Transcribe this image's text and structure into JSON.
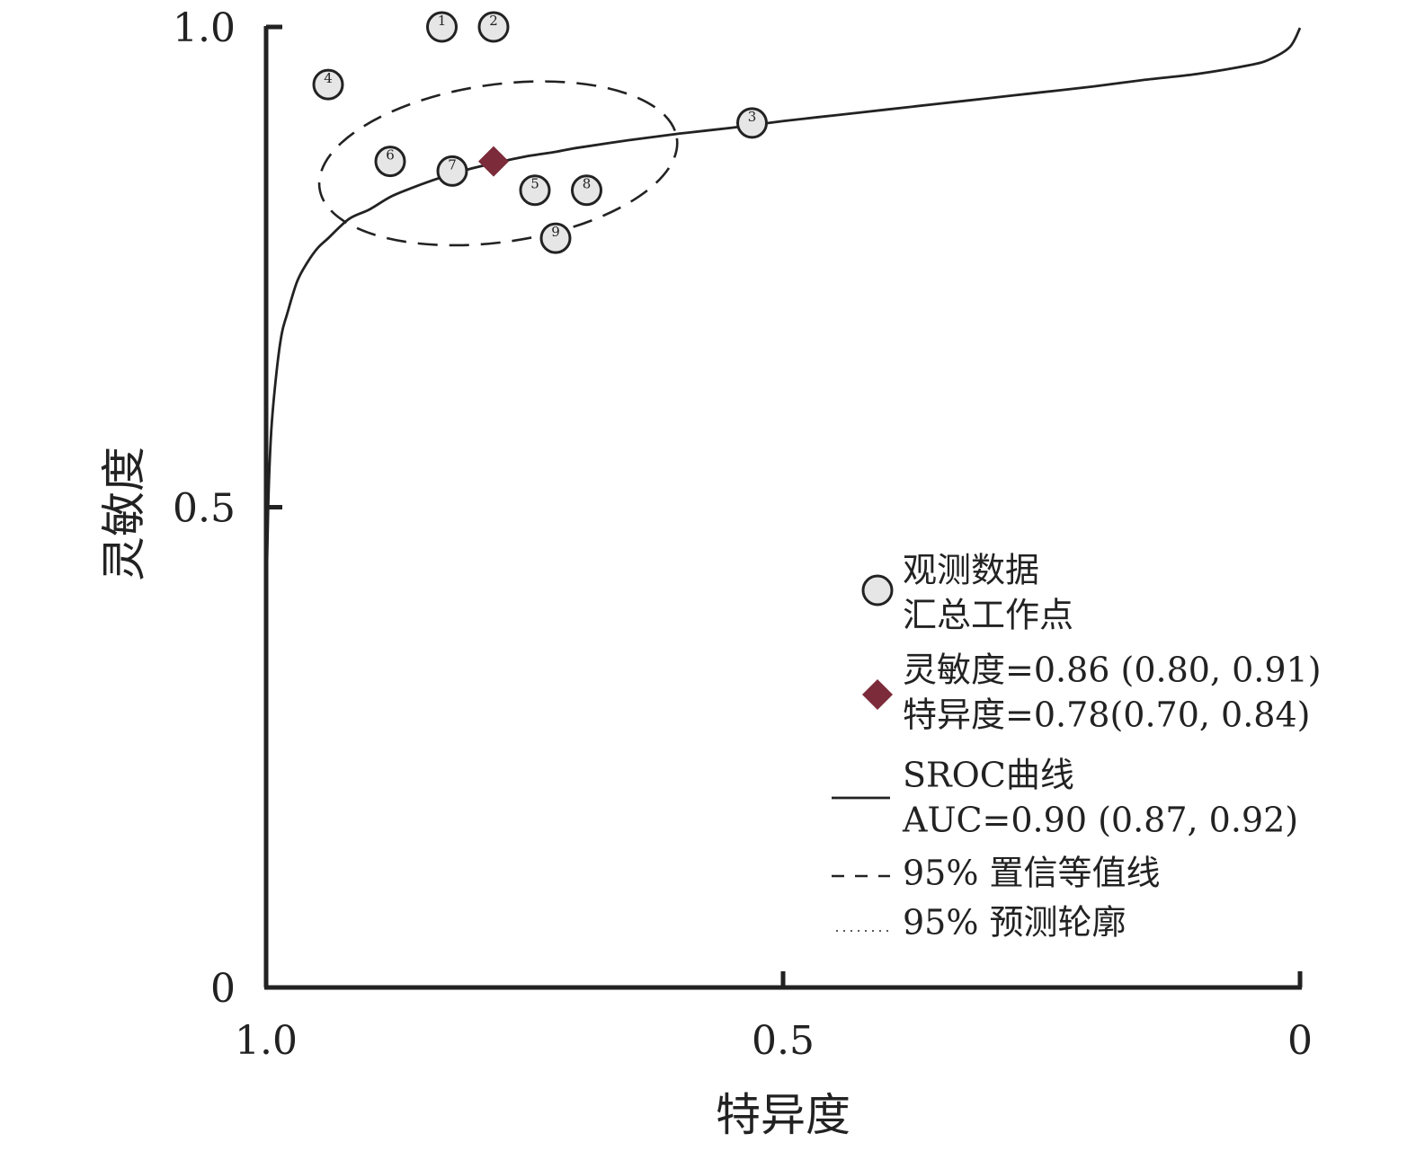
{
  "chart_data": {
    "type": "scatter",
    "title": "",
    "xlabel": "特异度",
    "ylabel": "灵敏度",
    "x_reversed": true,
    "xlim": [
      1.0,
      0
    ],
    "ylim": [
      0,
      1.0
    ],
    "x_ticks": [
      {
        "value": 1.0,
        "label": "1.0"
      },
      {
        "value": 0.5,
        "label": "0.5"
      },
      {
        "value": 0,
        "label": "0"
      }
    ],
    "y_ticks": [
      {
        "value": 0,
        "label": "0"
      },
      {
        "value": 0.5,
        "label": "0.5"
      },
      {
        "value": 1.0,
        "label": "1.0"
      }
    ],
    "grid": false,
    "legend_position": "bottom-right",
    "observed": [
      {
        "label": "1",
        "specificity": 0.83,
        "sensitivity": 1.0
      },
      {
        "label": "2",
        "specificity": 0.78,
        "sensitivity": 1.0
      },
      {
        "label": "3",
        "specificity": 0.53,
        "sensitivity": 0.9
      },
      {
        "label": "4",
        "specificity": 0.94,
        "sensitivity": 0.94
      },
      {
        "label": "5",
        "specificity": 0.74,
        "sensitivity": 0.83
      },
      {
        "label": "6",
        "specificity": 0.88,
        "sensitivity": 0.86
      },
      {
        "label": "7",
        "specificity": 0.82,
        "sensitivity": 0.85
      },
      {
        "label": "8",
        "specificity": 0.69,
        "sensitivity": 0.83
      },
      {
        "label": "9",
        "specificity": 0.72,
        "sensitivity": 0.78
      }
    ],
    "summary_point": {
      "specificity": 0.78,
      "sensitivity": 0.86
    },
    "sroc_curve": {
      "x": [
        1.0,
        0.998,
        0.995,
        0.99,
        0.985,
        0.98,
        0.97,
        0.96,
        0.95,
        0.94,
        0.92,
        0.9,
        0.88,
        0.86,
        0.84,
        0.82,
        0.8,
        0.78,
        0.75,
        0.72,
        0.7,
        0.65,
        0.6,
        0.55,
        0.5,
        0.45,
        0.4,
        0.35,
        0.3,
        0.25,
        0.2,
        0.15,
        0.1,
        0.05,
        0.03,
        0.01,
        0.0
      ],
      "y": [
        0.38,
        0.5,
        0.58,
        0.64,
        0.68,
        0.7,
        0.735,
        0.755,
        0.77,
        0.78,
        0.8,
        0.81,
        0.823,
        0.832,
        0.84,
        0.847,
        0.853,
        0.858,
        0.865,
        0.87,
        0.874,
        0.882,
        0.889,
        0.895,
        0.902,
        0.908,
        0.914,
        0.92,
        0.926,
        0.932,
        0.938,
        0.945,
        0.951,
        0.96,
        0.966,
        0.979,
        0.999
      ]
    },
    "confidence_region": {
      "cx": 0.7755,
      "cy": 0.858,
      "rx": 0.1745,
      "ry": 0.082,
      "rotation_deg": -8
    },
    "legend": [
      {
        "symbol": "circle",
        "lines": [
          "观测数据",
          "汇总工作点"
        ]
      },
      {
        "symbol": "diamond",
        "lines": [
          "灵敏度=0.86 (0.80, 0.91)",
          "特异度=0.78(0.70, 0.84)"
        ]
      },
      {
        "symbol": "solid-line",
        "lines": [
          "SROC曲线",
          "AUC=0.90 (0.87, 0.92)"
        ]
      },
      {
        "symbol": "dashed-line",
        "lines": [
          "95% 置信等值线"
        ]
      },
      {
        "symbol": "dotted-line",
        "lines": [
          "95% 预测轮廓"
        ]
      }
    ],
    "colors": {
      "axis": "#222222",
      "curve": "#222222",
      "point_fill": "#e6e6e6",
      "summary": "#7b2b3a"
    }
  }
}
